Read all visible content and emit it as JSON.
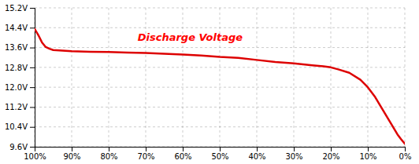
{
  "chart_data": {
    "type": "line",
    "title": "Discharge Voltage",
    "x": [
      100,
      99,
      98,
      97,
      96,
      95,
      90,
      85,
      80,
      75,
      70,
      65,
      60,
      55,
      50,
      45,
      40,
      35,
      30,
      25,
      22,
      20,
      18,
      15,
      12,
      10,
      8,
      6,
      4,
      2,
      1,
      0
    ],
    "values": [
      14.35,
      14.1,
      13.8,
      13.62,
      13.55,
      13.5,
      13.45,
      13.43,
      13.42,
      13.4,
      13.38,
      13.35,
      13.32,
      13.28,
      13.22,
      13.18,
      13.1,
      13.02,
      12.96,
      12.88,
      12.84,
      12.8,
      12.72,
      12.58,
      12.3,
      12.0,
      11.6,
      11.1,
      10.6,
      10.1,
      9.9,
      9.72
    ],
    "color": "#DD0000",
    "xlim": [
      100,
      0
    ],
    "xticks": [
      {
        "value": 100,
        "label": "100%"
      },
      {
        "value": 90,
        "label": "90%"
      },
      {
        "value": 80,
        "label": "80%"
      },
      {
        "value": 70,
        "label": "70%"
      },
      {
        "value": 60,
        "label": "60%"
      },
      {
        "value": 50,
        "label": "50%"
      },
      {
        "value": 40,
        "label": "40%"
      },
      {
        "value": 30,
        "label": "30%"
      },
      {
        "value": 20,
        "label": "20%"
      },
      {
        "value": 10,
        "label": "10%"
      },
      {
        "value": 0,
        "label": "0%"
      }
    ],
    "ylim": [
      9.6,
      15.2
    ],
    "yticks": [
      {
        "value": 9.6,
        "label": "9.6V"
      },
      {
        "value": 10.4,
        "label": "10.4V"
      },
      {
        "value": 11.2,
        "label": "11.2V"
      },
      {
        "value": 12.0,
        "label": "12.0V"
      },
      {
        "value": 12.8,
        "label": "12.8V"
      },
      {
        "value": 13.6,
        "label": "13.6V"
      },
      {
        "value": 14.4,
        "label": "14.4V"
      },
      {
        "value": 15.2,
        "label": "15.2V"
      }
    ],
    "grid": true
  }
}
